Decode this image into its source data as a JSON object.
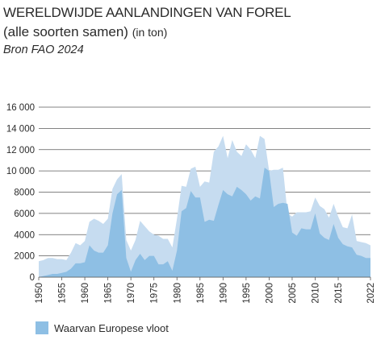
{
  "header": {
    "title": "WERELDWIJDE AANLANDINGEN VAN FOREL",
    "subtitle": "(alle soorten samen)",
    "subtitle_unit": "(in ton)",
    "source": "Bron FAO 2024"
  },
  "chart_data": {
    "type": "area",
    "title": "WERELDWIJDE AANLANDINGEN VAN FOREL",
    "subtitle": "(alle soorten samen) (in ton)",
    "xlabel": "",
    "ylabel": "",
    "xlim": [
      1950,
      2022
    ],
    "ylim": [
      0,
      16000
    ],
    "y_ticks": [
      "0",
      "2000",
      "4000",
      "6000",
      "8000",
      "10 000",
      "12 000",
      "14 000",
      "16 000"
    ],
    "x_ticks": [
      "1950",
      "1955",
      "1960",
      "1965",
      "1970",
      "1975",
      "1980",
      "1985",
      "1990",
      "1995",
      "2000",
      "2005",
      "2010",
      "2015",
      "2022"
    ],
    "grid": true,
    "legend_position": "bottom-left",
    "x": [
      1950,
      1951,
      1952,
      1953,
      1954,
      1955,
      1956,
      1957,
      1958,
      1959,
      1960,
      1961,
      1962,
      1963,
      1964,
      1965,
      1966,
      1967,
      1968,
      1969,
      1970,
      1971,
      1972,
      1973,
      1974,
      1975,
      1976,
      1977,
      1978,
      1979,
      1980,
      1981,
      1982,
      1983,
      1984,
      1985,
      1986,
      1987,
      1988,
      1989,
      1990,
      1991,
      1992,
      1993,
      1994,
      1995,
      1996,
      1997,
      1998,
      1999,
      2000,
      2001,
      2002,
      2003,
      2004,
      2005,
      2006,
      2007,
      2008,
      2009,
      2010,
      2011,
      2012,
      2013,
      2014,
      2015,
      2016,
      2017,
      2018,
      2019,
      2020,
      2021,
      2022
    ],
    "series": [
      {
        "name": "",
        "color": "#c6dcf0",
        "values": [
          1500,
          1600,
          1800,
          1800,
          1700,
          1700,
          1600,
          2300,
          3200,
          3000,
          3400,
          5200,
          5500,
          5300,
          5000,
          5500,
          8300,
          9200,
          9700,
          3500,
          2500,
          3500,
          5300,
          4800,
          4300,
          4000,
          3900,
          3600,
          3600,
          2800,
          5500,
          8600,
          8500,
          10200,
          10400,
          8500,
          9000,
          8900,
          11800,
          12300,
          13300,
          11200,
          12900,
          11800,
          11400,
          12500,
          12000,
          11200,
          13300,
          13000,
          10000,
          10100,
          10100,
          10300,
          6000,
          5700,
          6100,
          6100,
          6100,
          6200,
          7500,
          6700,
          6400,
          5600,
          6900,
          5700,
          4700,
          4600,
          5900,
          3400,
          3300,
          3200,
          3000
        ]
      },
      {
        "name": "Waarvan Europese vloot",
        "color": "#8ebfe4",
        "values": [
          0,
          100,
          200,
          300,
          300,
          400,
          500,
          800,
          1300,
          1300,
          1400,
          3000,
          2500,
          2300,
          2300,
          3000,
          6000,
          7800,
          8200,
          1800,
          500,
          1600,
          2200,
          1600,
          2000,
          2000,
          1200,
          1200,
          1500,
          600,
          2500,
          6200,
          6500,
          8100,
          7500,
          7500,
          5200,
          5400,
          5300,
          6800,
          8200,
          7800,
          7600,
          8500,
          8200,
          7800,
          7200,
          7600,
          7400,
          10300,
          10000,
          6600,
          6900,
          7000,
          6900,
          4200,
          3900,
          4600,
          4500,
          4500,
          6000,
          4100,
          3700,
          3500,
          5000,
          3700,
          3100,
          2900,
          2800,
          2100,
          2000,
          1800,
          1800
        ]
      }
    ]
  },
  "legend": {
    "label": "Waarvan Europese vloot",
    "color": "#8ebfe4"
  }
}
